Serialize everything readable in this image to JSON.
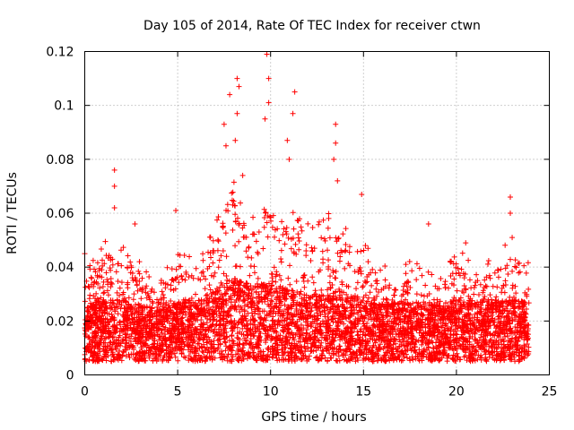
{
  "chart_data": {
    "type": "scatter",
    "title": "Day 105 of 2014, Rate Of TEC Index for receiver ctwn",
    "xlabel": "GPS time / hours",
    "ylabel": "ROTI / TECUs",
    "xlim": [
      0,
      25
    ],
    "ylim": [
      0,
      0.12
    ],
    "x_ticks": [
      0,
      5,
      10,
      15,
      20,
      25
    ],
    "x_tick_labels": [
      "0",
      "5",
      "10",
      "15",
      "20",
      "25"
    ],
    "y_ticks": [
      0,
      0.02,
      0.04,
      0.06,
      0.08,
      0.1,
      0.12
    ],
    "y_tick_labels": [
      "0",
      "0.02",
      "0.04",
      "0.06",
      "0.08",
      "0.1",
      "0.12"
    ],
    "grid": true,
    "marker": "+",
    "color": "#ff0000",
    "x_range_of_data": [
      0,
      23.9
    ],
    "typical_range": [
      0.005,
      0.035
    ],
    "notable_points": [
      {
        "x": 0.0,
        "y": 0.045
      },
      {
        "x": 1.6,
        "y": 0.076
      },
      {
        "x": 1.6,
        "y": 0.07
      },
      {
        "x": 1.6,
        "y": 0.062
      },
      {
        "x": 2.7,
        "y": 0.056
      },
      {
        "x": 4.9,
        "y": 0.061
      },
      {
        "x": 7.5,
        "y": 0.093
      },
      {
        "x": 7.6,
        "y": 0.085
      },
      {
        "x": 7.8,
        "y": 0.104
      },
      {
        "x": 8.2,
        "y": 0.11
      },
      {
        "x": 8.3,
        "y": 0.107
      },
      {
        "x": 8.2,
        "y": 0.097
      },
      {
        "x": 8.1,
        "y": 0.087
      },
      {
        "x": 8.5,
        "y": 0.074
      },
      {
        "x": 9.8,
        "y": 0.119
      },
      {
        "x": 9.9,
        "y": 0.11
      },
      {
        "x": 9.9,
        "y": 0.101
      },
      {
        "x": 9.7,
        "y": 0.095
      },
      {
        "x": 11.3,
        "y": 0.105
      },
      {
        "x": 11.2,
        "y": 0.097
      },
      {
        "x": 10.9,
        "y": 0.087
      },
      {
        "x": 11.0,
        "y": 0.08
      },
      {
        "x": 13.5,
        "y": 0.093
      },
      {
        "x": 13.5,
        "y": 0.086
      },
      {
        "x": 13.4,
        "y": 0.08
      },
      {
        "x": 13.6,
        "y": 0.072
      },
      {
        "x": 14.9,
        "y": 0.067
      },
      {
        "x": 18.5,
        "y": 0.056
      },
      {
        "x": 20.5,
        "y": 0.049
      },
      {
        "x": 22.9,
        "y": 0.066
      },
      {
        "x": 22.9,
        "y": 0.06
      },
      {
        "x": 23.0,
        "y": 0.051
      }
    ],
    "activity_profile": [
      {
        "x": 0,
        "base": 0.014,
        "peak": 0.032
      },
      {
        "x": 1,
        "base": 0.016,
        "peak": 0.045
      },
      {
        "x": 2,
        "base": 0.016,
        "peak": 0.042
      },
      {
        "x": 3,
        "base": 0.014,
        "peak": 0.035
      },
      {
        "x": 4,
        "base": 0.013,
        "peak": 0.03
      },
      {
        "x": 5,
        "base": 0.015,
        "peak": 0.042
      },
      {
        "x": 6,
        "base": 0.015,
        "peak": 0.035
      },
      {
        "x": 7,
        "base": 0.02,
        "peak": 0.05
      },
      {
        "x": 8,
        "base": 0.024,
        "peak": 0.065
      },
      {
        "x": 9,
        "base": 0.022,
        "peak": 0.055
      },
      {
        "x": 10,
        "base": 0.022,
        "peak": 0.06
      },
      {
        "x": 11,
        "base": 0.02,
        "peak": 0.055
      },
      {
        "x": 12,
        "base": 0.018,
        "peak": 0.05
      },
      {
        "x": 13,
        "base": 0.018,
        "peak": 0.055
      },
      {
        "x": 14,
        "base": 0.018,
        "peak": 0.05
      },
      {
        "x": 15,
        "base": 0.017,
        "peak": 0.045
      },
      {
        "x": 16,
        "base": 0.015,
        "peak": 0.035
      },
      {
        "x": 17,
        "base": 0.015,
        "peak": 0.032
      },
      {
        "x": 18,
        "base": 0.015,
        "peak": 0.04
      },
      {
        "x": 19,
        "base": 0.014,
        "peak": 0.032
      },
      {
        "x": 20,
        "base": 0.016,
        "peak": 0.04
      },
      {
        "x": 21,
        "base": 0.016,
        "peak": 0.035
      },
      {
        "x": 22,
        "base": 0.016,
        "peak": 0.038
      },
      {
        "x": 23,
        "base": 0.016,
        "peak": 0.045
      },
      {
        "x": 23.9,
        "base": 0.015,
        "peak": 0.035
      }
    ]
  }
}
